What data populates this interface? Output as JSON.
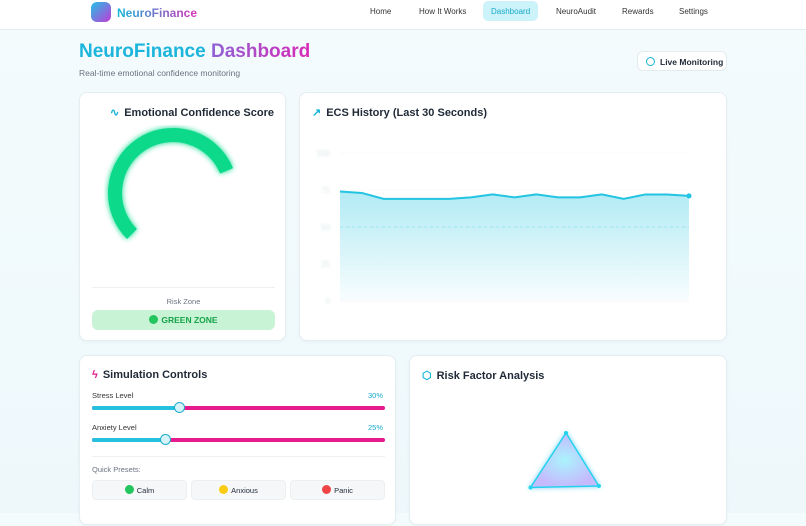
{
  "nav": {
    "brand": "NeuroFinance",
    "links": [
      "Home",
      "How It Works",
      "Dashboard",
      "NeuroAudit",
      "Rewards",
      "Settings"
    ]
  },
  "header": {
    "title_part1": "NeuroFinance",
    "title_part2": "Dashboard",
    "subtitle": "Real-time emotional confidence monitoring",
    "badge": "Live Monitoring"
  },
  "ecs_card": {
    "title": "Emotional Confidence Score",
    "risk_label": "Risk Zone",
    "zone": "GREEN ZONE",
    "chart_data": {
      "type": "gauge",
      "value": 75,
      "scale": [
        0,
        100
      ],
      "color": "#10d98a"
    }
  },
  "history_card": {
    "title": "ECS History (Last 30 Seconds)",
    "chart_data": {
      "type": "area",
      "values": [
        74,
        73,
        69,
        69,
        69,
        69,
        70,
        72,
        70,
        72,
        70,
        70,
        72,
        69,
        72,
        72,
        71
      ],
      "ylim": [
        0,
        100
      ],
      "yticks": [
        100,
        75,
        50,
        25,
        0
      ],
      "threshold": 50,
      "color": "#22c4e2"
    }
  },
  "sim_card": {
    "title": "Simulation Controls",
    "sliders": [
      {
        "label": "Stress Level",
        "value": 30,
        "value_label": "30%"
      },
      {
        "label": "Anxiety Level",
        "value": 25,
        "value_label": "25%"
      }
    ],
    "range": [
      0,
      100
    ],
    "presets_label": "Quick Presets:",
    "presets": [
      {
        "label": "Calm",
        "color": "#22c55e"
      },
      {
        "label": "Anxious",
        "color": "#facc15"
      },
      {
        "label": "Panic",
        "color": "#ef4444"
      }
    ]
  },
  "risk_card": {
    "title": "Risk Factor Analysis",
    "chart_data": {
      "type": "radar",
      "values": [
        68,
        76,
        82
      ],
      "rlim": [
        0,
        100
      ],
      "color": "#22d3ee"
    }
  }
}
